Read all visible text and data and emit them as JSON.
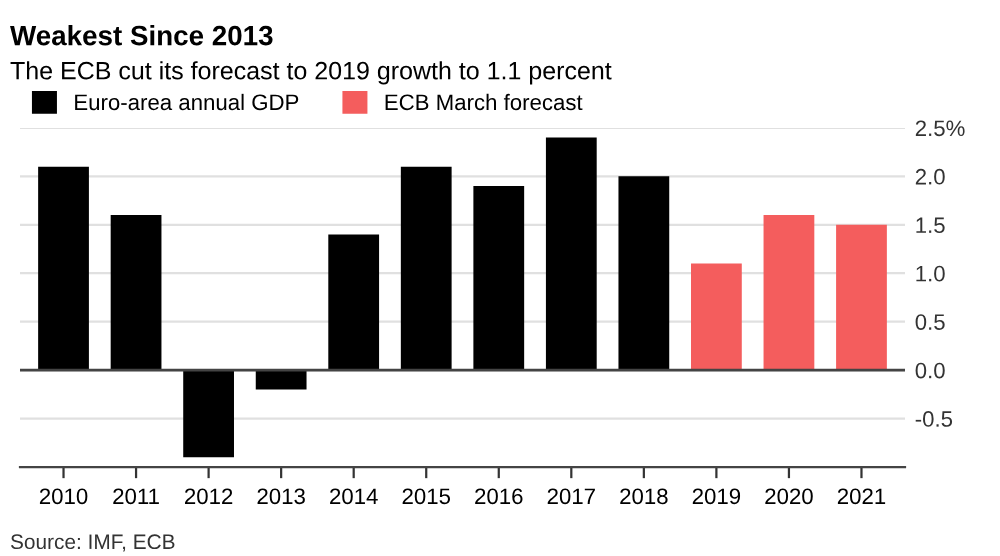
{
  "chart_data": {
    "type": "bar",
    "title": "Weakest Since 2013",
    "subtitle": "The ECB cut its forecast to 2019 growth to 1.1 percent",
    "categories": [
      "2010",
      "2011",
      "2012",
      "2013",
      "2014",
      "2015",
      "2016",
      "2017",
      "2018",
      "2019",
      "2020",
      "2021"
    ],
    "series": [
      {
        "name": "Euro-area annual GDP",
        "color": "#000000",
        "values": [
          2.1,
          1.6,
          -0.9,
          -0.2,
          1.4,
          2.1,
          1.9,
          2.4,
          2.0,
          null,
          null,
          null
        ]
      },
      {
        "name": "ECB March forecast",
        "color": "#f45d5d",
        "values": [
          null,
          null,
          null,
          null,
          null,
          null,
          null,
          null,
          null,
          1.1,
          1.6,
          1.5
        ]
      }
    ],
    "ylim": [
      -1.0,
      2.5
    ],
    "yticks": [
      -0.5,
      {
        "value": 0,
        "label": "0.0"
      },
      0.5,
      {
        "value": 1,
        "label": "1.0"
      },
      1.5,
      {
        "value": 2,
        "label": "2.0"
      },
      {
        "value": 2.5,
        "label": "2.5%"
      }
    ],
    "grid": "y",
    "legend": "top left",
    "annotations": [
      "Source: IMF, ECB"
    ]
  }
}
